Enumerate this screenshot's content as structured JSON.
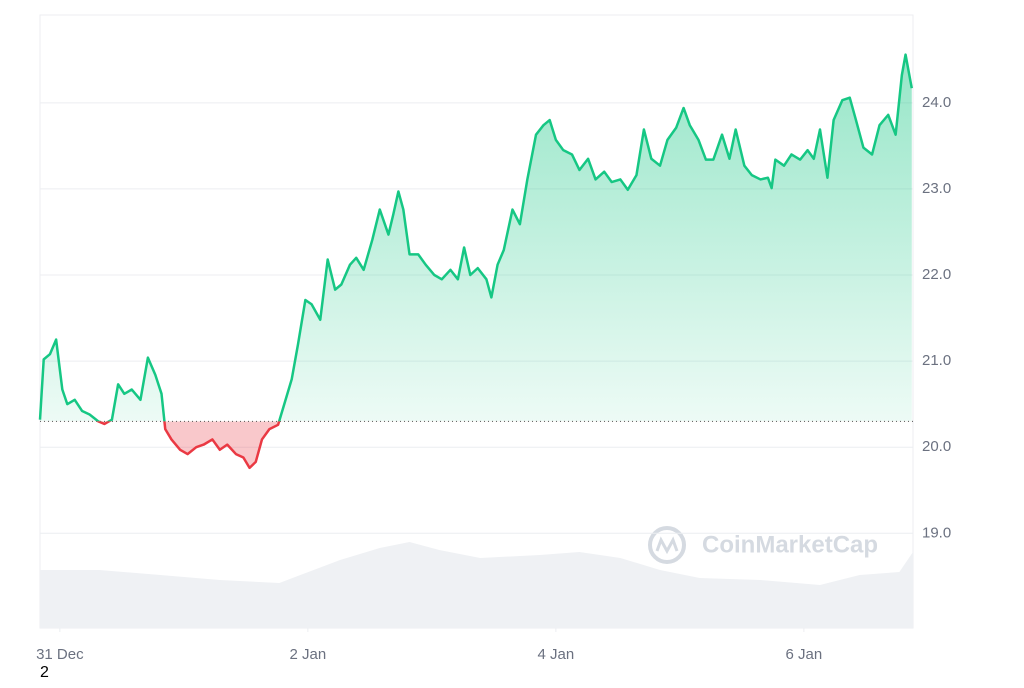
{
  "chart_data": {
    "type": "line",
    "watermark": "CoinMarketCap",
    "footnote": "2",
    "x": [
      -0.16,
      -0.13,
      -0.08,
      -0.03,
      0.02,
      0.06,
      0.12,
      0.18,
      0.24,
      0.31,
      0.36,
      0.42,
      0.47,
      0.52,
      0.58,
      0.65,
      0.71,
      0.77,
      0.82,
      0.85,
      0.9,
      0.97,
      1.03,
      1.1,
      1.16,
      1.23,
      1.29,
      1.35,
      1.42,
      1.48,
      1.53,
      1.58,
      1.63,
      1.69,
      1.76,
      1.81,
      1.87,
      1.92,
      1.98,
      2.03,
      2.1,
      2.16,
      2.22,
      2.27,
      2.34,
      2.39,
      2.45,
      2.52,
      2.58,
      2.65,
      2.69,
      2.73,
      2.77,
      2.82,
      2.89,
      2.95,
      3.02,
      3.08,
      3.15,
      3.21,
      3.26,
      3.31,
      3.37,
      3.44,
      3.48,
      3.53,
      3.58,
      3.65,
      3.71,
      3.77,
      3.84,
      3.9,
      3.95,
      4.0,
      4.06,
      4.13,
      4.19,
      4.26,
      4.32,
      4.39,
      4.45,
      4.52,
      4.58,
      4.65,
      4.71,
      4.77,
      4.84,
      4.9,
      4.97,
      5.03,
      5.08,
      5.15,
      5.21,
      5.27,
      5.34,
      5.4,
      5.45,
      5.52,
      5.58,
      5.65,
      5.71,
      5.74,
      5.77,
      5.84,
      5.9,
      5.97,
      6.03,
      6.08,
      6.13,
      6.19,
      6.24,
      6.31,
      6.37,
      6.42,
      6.48,
      6.55,
      6.61,
      6.68,
      6.74,
      6.79,
      6.82,
      6.87
    ],
    "values": [
      20.32,
      21.02,
      21.08,
      21.25,
      20.67,
      20.5,
      20.55,
      20.42,
      20.38,
      20.3,
      20.27,
      20.32,
      20.73,
      20.62,
      20.67,
      20.55,
      21.04,
      20.84,
      20.62,
      20.21,
      20.09,
      19.97,
      19.92,
      20.0,
      20.03,
      20.09,
      19.97,
      20.03,
      19.92,
      19.88,
      19.76,
      19.83,
      20.09,
      20.21,
      20.26,
      20.5,
      20.79,
      21.19,
      21.71,
      21.66,
      21.48,
      22.18,
      21.83,
      21.89,
      22.12,
      22.2,
      22.06,
      22.41,
      22.76,
      22.47,
      22.71,
      22.97,
      22.76,
      22.24,
      22.24,
      22.12,
      22.0,
      21.95,
      22.06,
      21.95,
      22.32,
      22.0,
      22.08,
      21.95,
      21.74,
      22.12,
      22.29,
      22.76,
      22.59,
      23.11,
      23.63,
      23.74,
      23.8,
      23.57,
      23.45,
      23.4,
      23.22,
      23.35,
      23.11,
      23.2,
      23.08,
      23.11,
      22.99,
      23.16,
      23.69,
      23.35,
      23.27,
      23.57,
      23.71,
      23.94,
      23.74,
      23.57,
      23.34,
      23.34,
      23.63,
      23.35,
      23.69,
      23.27,
      23.16,
      23.11,
      23.13,
      23.01,
      23.34,
      23.27,
      23.4,
      23.34,
      23.45,
      23.35,
      23.69,
      23.13,
      23.8,
      24.03,
      24.06,
      23.8,
      23.48,
      23.4,
      23.74,
      23.86,
      23.63,
      24.32,
      24.56,
      24.17
    ],
    "baseline": 20.3,
    "up_color": "#16c784",
    "down_color": "#ea3943",
    "xlim": [
      -0.16,
      6.88
    ],
    "xticks": [
      {
        "value": 0,
        "label": "31 Dec"
      },
      {
        "value": 2,
        "label": "2 Jan"
      },
      {
        "value": 4,
        "label": "4 Jan"
      },
      {
        "value": 6,
        "label": "6 Jan"
      }
    ],
    "ylim": [
      17.9,
      25.02
    ],
    "yticks": [
      {
        "value": 19,
        "label": "19.0"
      },
      {
        "value": 20,
        "label": "20.0"
      },
      {
        "value": 21,
        "label": "21.0"
      },
      {
        "value": 22,
        "label": "22.0"
      },
      {
        "value": 23,
        "label": "23.0"
      },
      {
        "value": 24,
        "label": "24.0"
      }
    ],
    "grid": true,
    "volume": {
      "color": "#eff1f4",
      "y2lim": [
        0,
        100
      ],
      "x": [
        -0.16,
        0.32,
        0.81,
        1.29,
        1.77,
        1.94,
        2.26,
        2.58,
        2.82,
        3.06,
        3.39,
        3.87,
        4.19,
        4.52,
        4.84,
        5.16,
        5.65,
        6.13,
        6.45,
        6.77,
        6.88
      ],
      "values": [
        58,
        58,
        53,
        48,
        45,
        53,
        68,
        80,
        86,
        78,
        70,
        73,
        76,
        70,
        58,
        50,
        48,
        43,
        53,
        56,
        76
      ]
    }
  }
}
